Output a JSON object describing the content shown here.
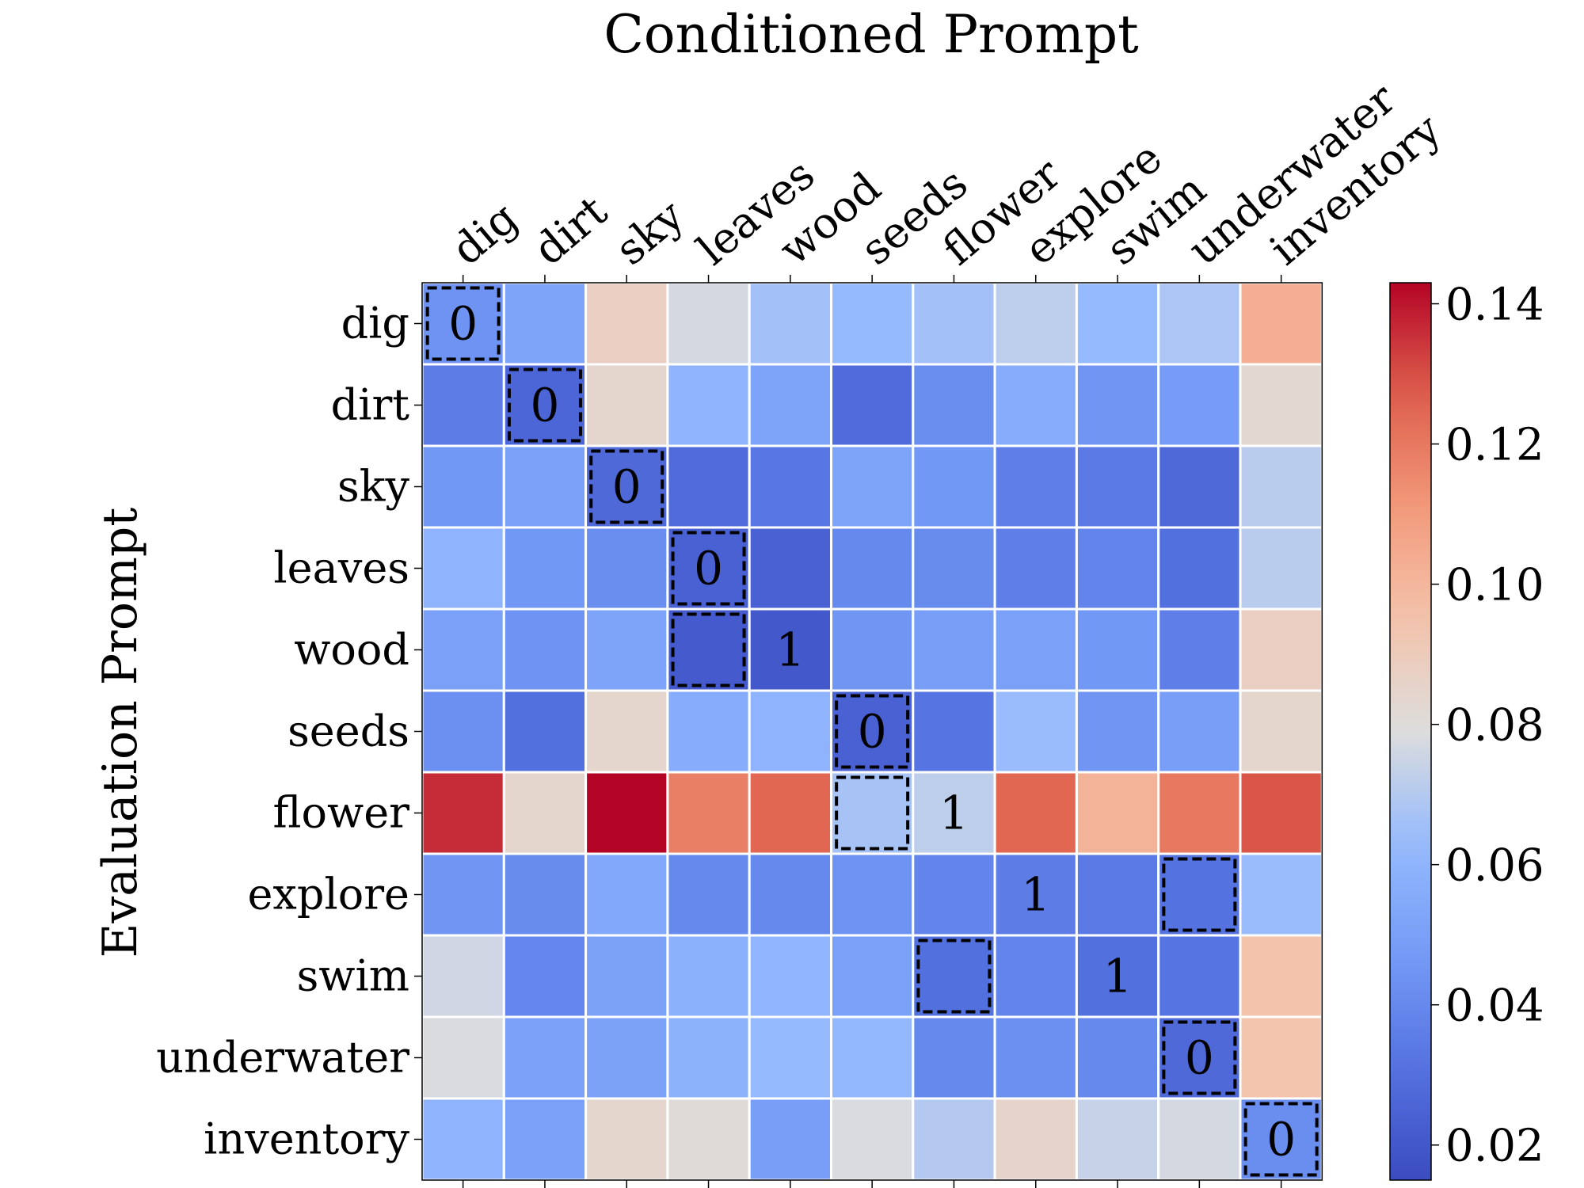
{
  "chart_data": {
    "type": "heatmap",
    "title": "Conditioned Prompt",
    "xlabel": "",
    "ylabel": "Evaluation Prompt",
    "columns": [
      "dig",
      "dirt",
      "sky",
      "leaves",
      "wood",
      "seeds",
      "flower",
      "explore",
      "swim",
      "underwater",
      "inventory"
    ],
    "rows": [
      "dig",
      "dirt",
      "sky",
      "leaves",
      "wood",
      "seeds",
      "flower",
      "explore",
      "swim",
      "underwater",
      "inventory"
    ],
    "values": [
      [
        0.044,
        0.052,
        0.088,
        0.077,
        0.066,
        0.063,
        0.066,
        0.072,
        0.063,
        0.068,
        0.103
      ],
      [
        0.035,
        0.026,
        0.084,
        0.06,
        0.052,
        0.028,
        0.042,
        0.056,
        0.045,
        0.048,
        0.083
      ],
      [
        0.046,
        0.05,
        0.027,
        0.028,
        0.033,
        0.052,
        0.046,
        0.036,
        0.034,
        0.027,
        0.071
      ],
      [
        0.06,
        0.046,
        0.042,
        0.024,
        0.024,
        0.04,
        0.041,
        0.036,
        0.038,
        0.03,
        0.071
      ],
      [
        0.05,
        0.044,
        0.052,
        0.021,
        0.02,
        0.045,
        0.049,
        0.05,
        0.046,
        0.036,
        0.088
      ],
      [
        0.043,
        0.03,
        0.084,
        0.056,
        0.06,
        0.024,
        0.032,
        0.064,
        0.045,
        0.049,
        0.084
      ],
      [
        0.136,
        0.084,
        0.143,
        0.118,
        0.125,
        0.067,
        0.072,
        0.125,
        0.101,
        0.12,
        0.129
      ],
      [
        0.045,
        0.041,
        0.054,
        0.04,
        0.04,
        0.044,
        0.038,
        0.035,
        0.034,
        0.031,
        0.064
      ],
      [
        0.076,
        0.039,
        0.051,
        0.058,
        0.061,
        0.05,
        0.03,
        0.038,
        0.03,
        0.032,
        0.095
      ],
      [
        0.078,
        0.05,
        0.051,
        0.059,
        0.063,
        0.062,
        0.04,
        0.043,
        0.04,
        0.027,
        0.094
      ],
      [
        0.06,
        0.05,
        0.084,
        0.081,
        0.049,
        0.078,
        0.07,
        0.085,
        0.074,
        0.077,
        0.042
      ]
    ],
    "colorbar": {
      "colormap": "coolwarm",
      "vmin": 0.015,
      "vmax": 0.143,
      "ticks": [
        0.02,
        0.04,
        0.06,
        0.08,
        0.1,
        0.12,
        0.14
      ],
      "tick_labels": [
        "0.02",
        "0.04",
        "0.06",
        "0.08",
        "0.10",
        "0.12",
        "0.14"
      ]
    },
    "annotations": [
      {
        "row": 0,
        "col": 0,
        "text": "0",
        "box": true
      },
      {
        "row": 1,
        "col": 1,
        "text": "0",
        "box": true
      },
      {
        "row": 2,
        "col": 2,
        "text": "0",
        "box": true
      },
      {
        "row": 3,
        "col": 3,
        "text": "0",
        "box": true
      },
      {
        "row": 4,
        "col": 3,
        "text": "",
        "box": true
      },
      {
        "row": 4,
        "col": 4,
        "text": "1",
        "box": false
      },
      {
        "row": 5,
        "col": 5,
        "text": "0",
        "box": true
      },
      {
        "row": 6,
        "col": 5,
        "text": "",
        "box": true
      },
      {
        "row": 6,
        "col": 6,
        "text": "1",
        "box": false
      },
      {
        "row": 7,
        "col": 7,
        "text": "1",
        "box": false
      },
      {
        "row": 7,
        "col": 9,
        "text": "",
        "box": true
      },
      {
        "row": 8,
        "col": 6,
        "text": "",
        "box": true
      },
      {
        "row": 8,
        "col": 8,
        "text": "1",
        "box": false
      },
      {
        "row": 9,
        "col": 9,
        "text": "0",
        "box": true
      },
      {
        "row": 10,
        "col": 10,
        "text": "0",
        "box": true
      }
    ]
  }
}
